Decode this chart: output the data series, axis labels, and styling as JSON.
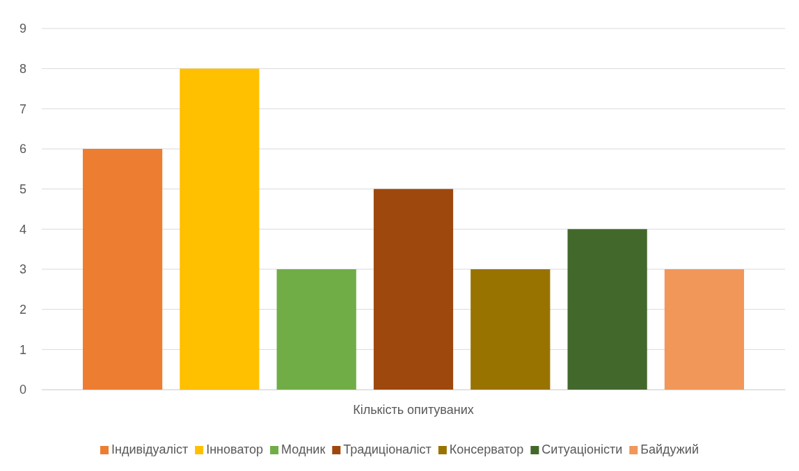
{
  "chart_data": {
    "type": "bar",
    "categories": [
      "Кількість опитуваних"
    ],
    "series": [
      {
        "name": "Індивідуаліст",
        "color": "#ed7d31",
        "values": [
          6
        ]
      },
      {
        "name": "Інноватор",
        "color": "#ffc000",
        "values": [
          8
        ]
      },
      {
        "name": "Модник",
        "color": "#70ad47",
        "values": [
          3
        ]
      },
      {
        "name": "Традиціоналіст",
        "color": "#9e480e",
        "values": [
          5
        ]
      },
      {
        "name": "Консерватор",
        "color": "#997300",
        "values": [
          3
        ]
      },
      {
        "name": "Ситуаціоністи",
        "color": "#43682b",
        "values": [
          4
        ]
      },
      {
        "name": "Байдужий",
        "color": "#f1975a",
        "values": [
          3
        ]
      }
    ],
    "ylim": [
      0,
      9
    ],
    "yticks": [
      0,
      1,
      2,
      3,
      4,
      5,
      6,
      7,
      8,
      9
    ],
    "grid": "y",
    "legend": "bottom"
  }
}
